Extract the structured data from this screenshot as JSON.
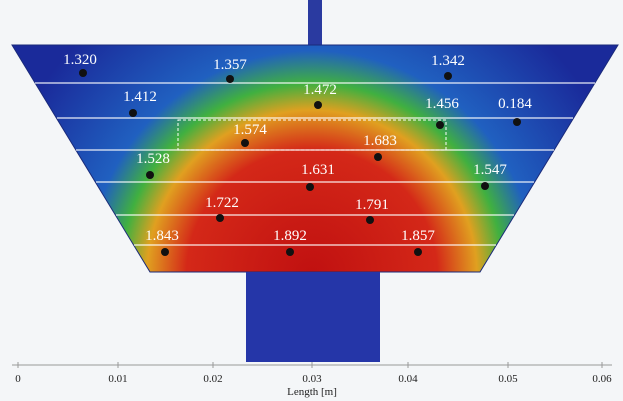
{
  "points": [
    {
      "label": "1.320"
    },
    {
      "label": "1.357"
    },
    {
      "label": "1.342"
    },
    {
      "label": "1.412"
    },
    {
      "label": "1.472"
    },
    {
      "label": "1.456"
    },
    {
      "label": "0.184"
    },
    {
      "label": "1.574"
    },
    {
      "label": "1.683"
    },
    {
      "label": "1.528"
    },
    {
      "label": "1.631"
    },
    {
      "label": "1.547"
    },
    {
      "label": "1.722"
    },
    {
      "label": "1.791"
    },
    {
      "label": "1.843"
    },
    {
      "label": "1.892"
    },
    {
      "label": "1.857"
    }
  ],
  "x_axis": {
    "label": "Length [m]",
    "ticks": [
      "0",
      "0.01",
      "0.02",
      "0.03",
      "0.04",
      "0.05",
      "0.06"
    ]
  }
}
